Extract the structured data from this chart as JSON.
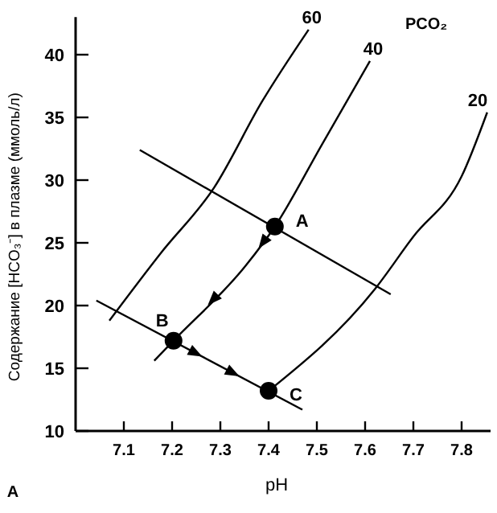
{
  "chart_data": {
    "type": "line",
    "xlabel": "pH",
    "ylabel": "Содержание [HCO₃⁻] в плазме  (ммоль/л)",
    "xlim": [
      7.0,
      7.86
    ],
    "ylim": [
      10,
      43
    ],
    "xticks": [
      7.1,
      7.2,
      7.3,
      7.4,
      7.5,
      7.6,
      7.7,
      7.8
    ],
    "yticks": [
      10,
      15,
      20,
      25,
      30,
      35,
      40
    ],
    "series": [
      {
        "name": "60",
        "color": "#000000",
        "x": [
          7.07,
          7.177,
          7.287,
          7.387,
          7.483
        ],
        "values": [
          18.8,
          24.2,
          29.4,
          36.3,
          42
        ]
      },
      {
        "name": "40",
        "color": "#000000",
        "x": [
          7.163,
          7.203,
          7.353,
          7.413,
          7.51,
          7.61
        ],
        "values": [
          15.6,
          17.2,
          23.2,
          26.3,
          32.8,
          39.5
        ]
      },
      {
        "name": "20",
        "color": "#000000",
        "x": [
          7.4,
          7.62,
          7.7,
          7.8,
          7.853
        ],
        "values": [
          13.2,
          21.3,
          25.5,
          30.3,
          35.4
        ]
      },
      {
        "color": "#000000",
        "x": [
          7.133,
          7.653
        ],
        "values": [
          32.4,
          20.9
        ]
      },
      {
        "color": "#000000",
        "x": [
          7.043,
          7.47
        ],
        "values": [
          20.4,
          11.7
        ]
      },
      {
        "type": "scatter",
        "marker": "circle",
        "color": "#000000",
        "x": [
          7.413,
          7.203,
          7.4
        ],
        "values": [
          26.3,
          17.2,
          13.2
        ]
      }
    ],
    "annotations": [
      {
        "text": "A",
        "x": 7.413,
        "y": 26.3
      },
      {
        "text": "B",
        "x": 7.203,
        "y": 17.2
      },
      {
        "text": "C",
        "x": 7.4,
        "y": 13.2
      },
      "PCO₂",
      "A"
    ]
  }
}
